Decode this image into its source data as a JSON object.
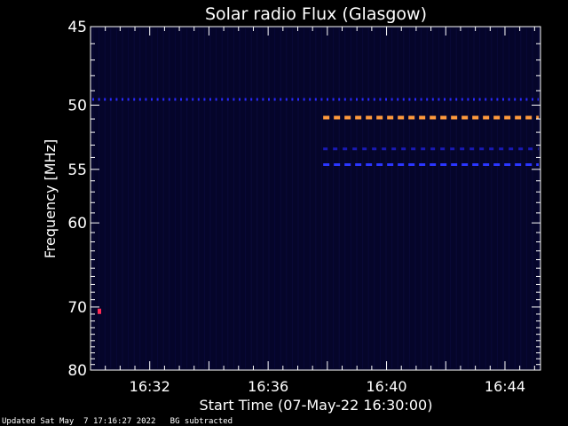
{
  "chart_data": {
    "type": "heatmap",
    "title": "Solar radio Flux (Glasgow)",
    "xlabel": "Start Time (07-May-22 16:30:00)",
    "ylabel": "Frequency [MHz]",
    "x_unit": "minutes after 16:30:00",
    "xlim": [
      0,
      15.2
    ],
    "ylim": [
      45,
      80
    ],
    "y_scale": "reciprocal",
    "x_ticks": [
      {
        "value": 2,
        "label": "16:32"
      },
      {
        "value": 6,
        "label": "16:36"
      },
      {
        "value": 10,
        "label": "16:40"
      },
      {
        "value": 14,
        "label": "16:44"
      }
    ],
    "y_ticks": [
      {
        "value": 45,
        "label": "45"
      },
      {
        "value": 50,
        "label": "50"
      },
      {
        "value": 55,
        "label": "55"
      },
      {
        "value": 60,
        "label": "60"
      },
      {
        "value": 70,
        "label": "70"
      },
      {
        "value": 80,
        "label": "80"
      }
    ],
    "background_color": "#05052a",
    "emission_bands": [
      {
        "freq_mhz": 49.6,
        "t_start": 0.0,
        "t_end": 15.2,
        "color": "#2a2aff",
        "style": "dashed"
      },
      {
        "freq_mhz": 50.9,
        "t_start": 7.8,
        "t_end": 15.2,
        "color": "#ff9a3c",
        "style": "dashed"
      },
      {
        "freq_mhz": 53.3,
        "t_start": 7.8,
        "t_end": 15.2,
        "color": "#1a1ab4",
        "style": "dashed"
      },
      {
        "freq_mhz": 54.6,
        "t_start": 7.8,
        "t_end": 15.2,
        "color": "#2a36ff",
        "style": "dashed"
      }
    ],
    "point_events": [
      {
        "freq_mhz": 70.6,
        "t": 0.3,
        "color": "#ff2a55"
      }
    ]
  },
  "footer": {
    "updated": "Updated Sat May  7 17:16:27 2022",
    "note": "BG subtracted"
  },
  "colors": {
    "axes": "#ffffff",
    "background": "#000000"
  }
}
